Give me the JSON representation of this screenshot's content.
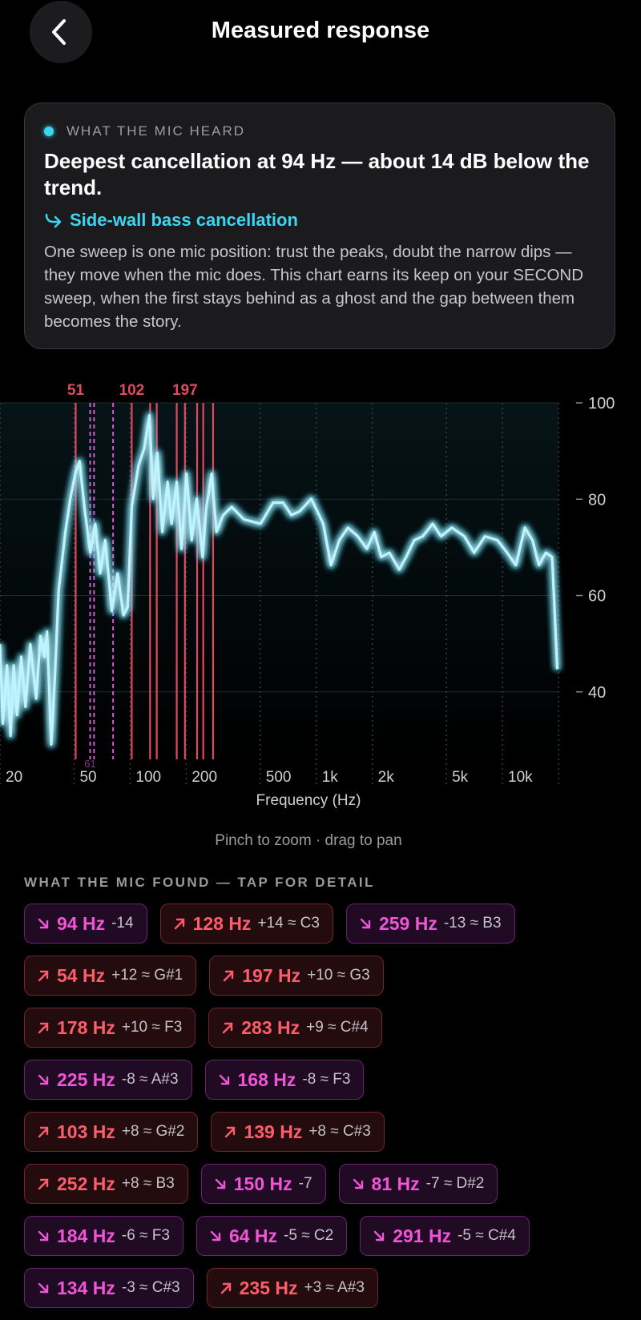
{
  "header": {
    "title": "Measured response"
  },
  "card": {
    "eyebrow": "WHAT THE MIC HEARD",
    "headline": "Deepest cancellation at 94 Hz — about 14 dB below the trend.",
    "link": "Side-wall bass cancellation",
    "body": "One sweep is one mic position: trust the peaks, doubt the narrow dips — they move when the mic does. This chart earns its keep on your SECOND sweep, when the first stays behind as a ghost and the gap between them becomes the story."
  },
  "chart_data": {
    "type": "line",
    "xlabel": "Frequency (Hz)",
    "xscale": "log",
    "xlim": [
      20,
      20000
    ],
    "xticks": [
      20,
      50,
      100,
      200,
      500,
      {
        "value": 1000,
        "label": "1k"
      },
      {
        "value": 2000,
        "label": "2k"
      },
      {
        "value": 5000,
        "label": "5k"
      },
      {
        "value": 10000,
        "label": "10k"
      },
      {
        "value": 20000,
        "label": ""
      }
    ],
    "ylim": [
      26,
      100
    ],
    "yticks": [
      40,
      60,
      80,
      100
    ],
    "grid": true,
    "color": "#bff4ff",
    "glow_color": "#22cfee",
    "peak_color": "#e2485e",
    "dip_color": "#d65ad6",
    "peak_markers": [
      51,
      102,
      128,
      139,
      178,
      197,
      229,
      247,
      279
    ],
    "dip_markers": [
      61,
      64,
      81
    ],
    "peak_labels": [
      51,
      102,
      197
    ],
    "dip_labels": [
      61
    ],
    "x": [
      20,
      20.7,
      21.8,
      22.8,
      23.7,
      24.7,
      26.0,
      27.4,
      29.1,
      31.3,
      33.0,
      34.7,
      35.8,
      37.7,
      39.3,
      41.3,
      44.9,
      47.7,
      50.7,
      53.5,
      56.8,
      61.1,
      64.9,
      69.1,
      73.5,
      79.8,
      85.7,
      92.1,
      97,
      102,
      111,
      119,
      127,
      133,
      140,
      149,
      159,
      167,
      178,
      189,
      201,
      214,
      228,
      245,
      257,
      274,
      291,
      316,
      351,
      409,
      502,
      586,
      663,
      735,
      815,
      940,
      1090,
      1200,
      1330,
      1480,
      1670,
      1870,
      2050,
      2230,
      2470,
      2790,
      3040,
      3360,
      3730,
      4220,
      4680,
      5350,
      6240,
      7050,
      8050,
      9400,
      10600,
      11800,
      13200,
      14500,
      15700,
      17100,
      18500,
      19700
    ],
    "series": [
      {
        "name": "Sweep",
        "values": [
          49.9,
          33.4,
          45.5,
          30.9,
          45.5,
          35.2,
          47.3,
          36.9,
          49.9,
          38.6,
          51.6,
          47.3,
          52.5,
          29.1,
          42.1,
          61.1,
          73.2,
          80.1,
          85.3,
          87.9,
          78.4,
          68.9,
          74.9,
          64.6,
          71.5,
          56.8,
          64.6,
          55.9,
          57.6,
          78.4,
          87.0,
          90.5,
          97.4,
          80.1,
          89.6,
          73.2,
          83.6,
          74.9,
          83.6,
          69.7,
          85.3,
          71.5,
          80.1,
          68.0,
          78.4,
          85.3,
          73.2,
          76.7,
          78.4,
          75.8,
          74.9,
          79.3,
          79.3,
          76.7,
          77.5,
          80.1,
          74.9,
          66.3,
          71.5,
          74.1,
          72.3,
          69.7,
          73.2,
          68.0,
          68.9,
          65.4,
          68.0,
          71.5,
          72.3,
          74.9,
          72.3,
          74.1,
          72.3,
          68.9,
          72.3,
          71.5,
          68.9,
          66.3,
          74.1,
          71.5,
          66.3,
          68.9,
          68.0,
          44.7
        ]
      }
    ]
  },
  "hint": "Pinch to zoom · drag to pan",
  "findings": {
    "heading": "WHAT THE MIC FOUND — TAP FOR DETAIL",
    "up_color": "#ff5c6c",
    "down_color": "#f055d6",
    "rows": [
      [
        {
          "direction": "down",
          "hz": "94 Hz",
          "detail": "-14"
        },
        {
          "direction": "up",
          "hz": "128 Hz",
          "detail": "+14 ≈ C3"
        },
        {
          "direction": "down",
          "hz": "259 Hz",
          "detail": "-13 ≈ B3"
        }
      ],
      [
        {
          "direction": "up",
          "hz": "54 Hz",
          "detail": "+12 ≈ G#1"
        },
        {
          "direction": "up",
          "hz": "197 Hz",
          "detail": "+10 ≈ G3"
        }
      ],
      [
        {
          "direction": "up",
          "hz": "178 Hz",
          "detail": "+10 ≈ F3"
        },
        {
          "direction": "up",
          "hz": "283 Hz",
          "detail": "+9 ≈ C#4"
        }
      ],
      [
        {
          "direction": "down",
          "hz": "225 Hz",
          "detail": "-8 ≈ A#3"
        },
        {
          "direction": "down",
          "hz": "168 Hz",
          "detail": "-8 ≈ F3"
        }
      ],
      [
        {
          "direction": "up",
          "hz": "103 Hz",
          "detail": "+8 ≈ G#2"
        },
        {
          "direction": "up",
          "hz": "139 Hz",
          "detail": "+8 ≈ C#3"
        }
      ],
      [
        {
          "direction": "up",
          "hz": "252 Hz",
          "detail": "+8 ≈ B3"
        },
        {
          "direction": "down",
          "hz": "150 Hz",
          "detail": "-7"
        },
        {
          "direction": "down",
          "hz": "81 Hz",
          "detail": "-7 ≈ D#2"
        }
      ],
      [
        {
          "direction": "down",
          "hz": "184 Hz",
          "detail": "-6 ≈ F3"
        },
        {
          "direction": "down",
          "hz": "64 Hz",
          "detail": "-5 ≈ C2"
        },
        {
          "direction": "down",
          "hz": "291 Hz",
          "detail": "-5 ≈ C#4"
        }
      ],
      [
        {
          "direction": "down",
          "hz": "134 Hz",
          "detail": "-3 ≈ C#3"
        },
        {
          "direction": "up",
          "hz": "235 Hz",
          "detail": "+3 ≈ A#3"
        }
      ]
    ]
  }
}
